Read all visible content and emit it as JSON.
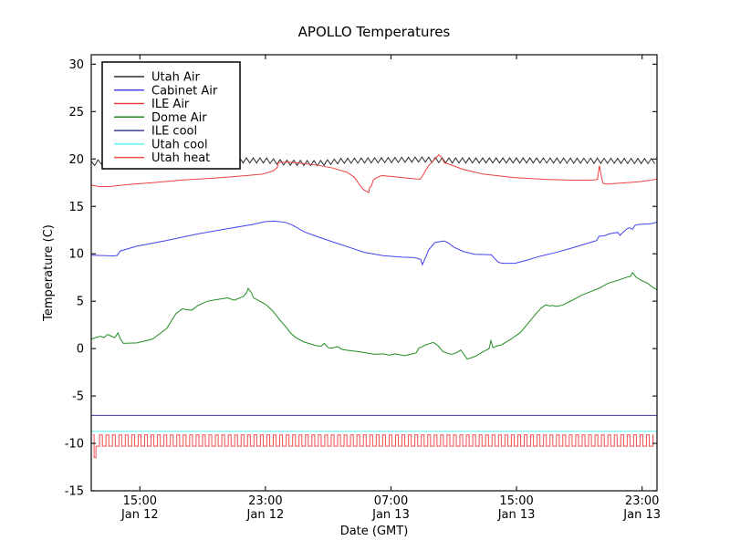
{
  "title": "APOLLO Temperatures",
  "chart_data": {
    "type": "line",
    "title": "APOLLO Temperatures",
    "xlabel": "Date (GMT)",
    "ylabel": "Temperature (C)",
    "x_unit": "hours since Jan 12 00:00 GMT",
    "xlim": [
      11.9,
      47.95
    ],
    "ylim": [
      -15,
      31
    ],
    "grid": false,
    "legend_position": "upper left",
    "yticks": [
      {
        "value": 30,
        "label": "30"
      },
      {
        "value": 25,
        "label": "25"
      },
      {
        "value": 20,
        "label": "20"
      },
      {
        "value": 15,
        "label": "15"
      },
      {
        "value": 10,
        "label": "10"
      },
      {
        "value": 5,
        "label": "5"
      },
      {
        "value": 0,
        "label": "0"
      },
      {
        "value": -5,
        "label": "-5"
      },
      {
        "value": -10,
        "label": "-10"
      },
      {
        "value": -15,
        "label": "-15"
      }
    ],
    "xticks": [
      {
        "value": 15,
        "time": "15:00",
        "date": "Jan 12"
      },
      {
        "value": 23,
        "time": "23:00",
        "date": "Jan 12"
      },
      {
        "value": 31,
        "time": "07:00",
        "date": "Jan 13"
      },
      {
        "value": 39,
        "time": "15:00",
        "date": "Jan 13"
      },
      {
        "value": 47,
        "time": "23:00",
        "date": "Jan 13"
      }
    ],
    "legend": [
      {
        "label": "Utah Air",
        "color": "#2e2e2e"
      },
      {
        "label": "Cabinet Air",
        "color": "#4444ee"
      },
      {
        "label": "ILE Air",
        "color": "#ee4040"
      },
      {
        "label": "Dome Air",
        "color": "#1f8c1f"
      },
      {
        "label": "ILE cool",
        "color": "#3c3c8c"
      },
      {
        "label": "Utah cool",
        "color": "#5ff0f0"
      },
      {
        "label": "Utah heat",
        "color": "#f05050"
      }
    ],
    "series": [
      {
        "name": "Utah Air",
        "color": "#2e2e2e",
        "type": "zigzag",
        "period": 0.43,
        "amplitude": 0.27,
        "t_start": 11.9,
        "t_end": 47.95,
        "centerline": [
          [
            11.9,
            19.5
          ],
          [
            12.6,
            19.75
          ],
          [
            13.5,
            19.85
          ],
          [
            23.0,
            19.85
          ],
          [
            24.2,
            19.62
          ],
          [
            26.4,
            19.55
          ],
          [
            27.8,
            19.8
          ],
          [
            33.0,
            19.95
          ],
          [
            34.5,
            19.85
          ],
          [
            40.0,
            19.85
          ],
          [
            47.95,
            19.78
          ]
        ]
      },
      {
        "name": "Cabinet Air",
        "color": "#4444ee",
        "type": "line",
        "points": [
          [
            11.9,
            9.85
          ],
          [
            12.8,
            9.8
          ],
          [
            13.3,
            9.78
          ],
          [
            13.55,
            9.82
          ],
          [
            13.75,
            10.3
          ],
          [
            14.8,
            10.8
          ],
          [
            16.7,
            11.4
          ],
          [
            18.7,
            12.1
          ],
          [
            20.6,
            12.65
          ],
          [
            22.2,
            13.1
          ],
          [
            23.0,
            13.4
          ],
          [
            23.6,
            13.45
          ],
          [
            24.3,
            13.3
          ],
          [
            24.7,
            13.05
          ],
          [
            25.5,
            12.3
          ],
          [
            26.4,
            11.75
          ],
          [
            27.4,
            11.2
          ],
          [
            28.4,
            10.65
          ],
          [
            29.3,
            10.15
          ],
          [
            30.5,
            9.8
          ],
          [
            31.7,
            9.65
          ],
          [
            32.5,
            9.6
          ],
          [
            32.9,
            9.4
          ],
          [
            33.0,
            8.85
          ],
          [
            33.2,
            9.6
          ],
          [
            33.4,
            10.4
          ],
          [
            33.8,
            11.2
          ],
          [
            34.4,
            11.35
          ],
          [
            34.7,
            11.1
          ],
          [
            35.0,
            10.7
          ],
          [
            35.6,
            10.25
          ],
          [
            36.3,
            9.95
          ],
          [
            37.4,
            9.9
          ],
          [
            37.6,
            9.5
          ],
          [
            37.85,
            9.1
          ],
          [
            38.1,
            9.0
          ],
          [
            38.9,
            9.0
          ],
          [
            39.7,
            9.35
          ],
          [
            40.4,
            9.7
          ],
          [
            41.4,
            10.1
          ],
          [
            42.3,
            10.5
          ],
          [
            43.1,
            10.9
          ],
          [
            43.9,
            11.3
          ],
          [
            44.1,
            11.4
          ],
          [
            44.25,
            11.85
          ],
          [
            44.6,
            11.9
          ],
          [
            44.9,
            12.1
          ],
          [
            45.2,
            12.2
          ],
          [
            45.45,
            12.25
          ],
          [
            45.6,
            11.95
          ],
          [
            45.8,
            12.3
          ],
          [
            46.05,
            12.65
          ],
          [
            46.2,
            12.75
          ],
          [
            46.4,
            12.6
          ],
          [
            46.55,
            13.0
          ],
          [
            46.8,
            13.1
          ],
          [
            47.4,
            13.15
          ],
          [
            47.65,
            13.2
          ],
          [
            47.95,
            13.35
          ]
        ]
      },
      {
        "name": "ILE Air",
        "color": "#ee4040",
        "type": "line",
        "points": [
          [
            11.9,
            17.25
          ],
          [
            12.4,
            17.1
          ],
          [
            13.1,
            17.1
          ],
          [
            14.2,
            17.3
          ],
          [
            15.8,
            17.5
          ],
          [
            17.7,
            17.78
          ],
          [
            19.6,
            17.97
          ],
          [
            21.6,
            18.22
          ],
          [
            22.8,
            18.4
          ],
          [
            23.5,
            18.75
          ],
          [
            23.75,
            19.1
          ],
          [
            23.82,
            19.63
          ],
          [
            24.4,
            19.68
          ],
          [
            25.0,
            19.6
          ],
          [
            26.3,
            19.35
          ],
          [
            27.3,
            19.05
          ],
          [
            28.2,
            18.6
          ],
          [
            28.65,
            18.1
          ],
          [
            29.0,
            17.3
          ],
          [
            29.25,
            16.75
          ],
          [
            29.45,
            16.6
          ],
          [
            29.58,
            16.45
          ],
          [
            29.64,
            17.0
          ],
          [
            29.75,
            17.15
          ],
          [
            29.87,
            17.8
          ],
          [
            30.1,
            18.05
          ],
          [
            30.4,
            18.25
          ],
          [
            31.1,
            18.15
          ],
          [
            32.1,
            17.97
          ],
          [
            32.85,
            17.87
          ],
          [
            33.0,
            18.2
          ],
          [
            33.4,
            19.3
          ],
          [
            33.8,
            20.0
          ],
          [
            34.05,
            20.45
          ],
          [
            34.25,
            20.1
          ],
          [
            34.4,
            19.6
          ],
          [
            34.7,
            19.45
          ],
          [
            35.6,
            18.9
          ],
          [
            36.9,
            18.4
          ],
          [
            38.8,
            18.05
          ],
          [
            40.8,
            17.85
          ],
          [
            42.7,
            17.75
          ],
          [
            43.9,
            17.78
          ],
          [
            44.16,
            17.85
          ],
          [
            44.28,
            19.3
          ],
          [
            44.4,
            18.2
          ],
          [
            44.5,
            17.45
          ],
          [
            44.75,
            17.35
          ],
          [
            45.6,
            17.45
          ],
          [
            46.8,
            17.6
          ],
          [
            47.5,
            17.75
          ],
          [
            47.95,
            17.9
          ]
        ]
      },
      {
        "name": "Dome Air",
        "color": "#1f8c1f",
        "type": "line",
        "points": [
          [
            11.9,
            1.0
          ],
          [
            12.25,
            1.2
          ],
          [
            12.5,
            1.3
          ],
          [
            12.7,
            1.15
          ],
          [
            12.95,
            1.5
          ],
          [
            13.2,
            1.3
          ],
          [
            13.4,
            1.15
          ],
          [
            13.6,
            1.65
          ],
          [
            13.76,
            1.0
          ],
          [
            13.95,
            0.55
          ],
          [
            14.8,
            0.6
          ],
          [
            15.8,
            1.0
          ],
          [
            16.7,
            2.1
          ],
          [
            17.3,
            3.7
          ],
          [
            17.7,
            4.2
          ],
          [
            18.0,
            4.1
          ],
          [
            18.3,
            4.05
          ],
          [
            18.7,
            4.55
          ],
          [
            19.3,
            5.0
          ],
          [
            20.0,
            5.2
          ],
          [
            20.6,
            5.35
          ],
          [
            21.0,
            5.1
          ],
          [
            21.3,
            5.3
          ],
          [
            21.6,
            5.5
          ],
          [
            21.8,
            5.9
          ],
          [
            21.9,
            6.35
          ],
          [
            22.1,
            5.9
          ],
          [
            22.25,
            5.35
          ],
          [
            22.8,
            4.85
          ],
          [
            23.1,
            4.55
          ],
          [
            23.5,
            3.9
          ],
          [
            23.95,
            2.95
          ],
          [
            24.3,
            2.3
          ],
          [
            24.6,
            1.65
          ],
          [
            24.9,
            1.2
          ],
          [
            25.45,
            0.7
          ],
          [
            26.25,
            0.3
          ],
          [
            26.55,
            0.25
          ],
          [
            26.75,
            0.55
          ],
          [
            27.0,
            0.1
          ],
          [
            27.2,
            0.05
          ],
          [
            27.6,
            0.2
          ],
          [
            27.9,
            -0.1
          ],
          [
            28.35,
            -0.2
          ],
          [
            29.05,
            -0.35
          ],
          [
            29.95,
            -0.6
          ],
          [
            30.5,
            -0.55
          ],
          [
            30.9,
            -0.7
          ],
          [
            31.25,
            -0.55
          ],
          [
            31.85,
            -0.75
          ],
          [
            32.25,
            -0.6
          ],
          [
            32.6,
            -0.45
          ],
          [
            32.8,
            0.1
          ],
          [
            32.95,
            0.15
          ],
          [
            33.15,
            0.35
          ],
          [
            33.4,
            0.5
          ],
          [
            33.7,
            0.65
          ],
          [
            34.0,
            0.3
          ],
          [
            34.3,
            -0.3
          ],
          [
            34.6,
            -0.5
          ],
          [
            34.85,
            -0.6
          ],
          [
            35.15,
            -0.45
          ],
          [
            35.45,
            -0.15
          ],
          [
            35.65,
            -0.6
          ],
          [
            35.85,
            -1.1
          ],
          [
            36.15,
            -0.95
          ],
          [
            36.45,
            -0.75
          ],
          [
            36.9,
            -0.3
          ],
          [
            37.25,
            0.0
          ],
          [
            37.37,
            0.85
          ],
          [
            37.5,
            0.1
          ],
          [
            37.8,
            0.3
          ],
          [
            38.05,
            0.4
          ],
          [
            38.65,
            1.0
          ],
          [
            39.25,
            1.7
          ],
          [
            39.8,
            2.8
          ],
          [
            40.2,
            3.6
          ],
          [
            40.55,
            4.25
          ],
          [
            40.85,
            4.6
          ],
          [
            41.15,
            4.5
          ],
          [
            41.3,
            4.55
          ],
          [
            41.55,
            4.45
          ],
          [
            41.8,
            4.55
          ],
          [
            41.95,
            4.6
          ],
          [
            42.55,
            5.1
          ],
          [
            43.1,
            5.6
          ],
          [
            43.7,
            6.0
          ],
          [
            44.3,
            6.4
          ],
          [
            44.85,
            6.9
          ],
          [
            45.45,
            7.2
          ],
          [
            46.05,
            7.55
          ],
          [
            46.25,
            7.6
          ],
          [
            46.38,
            8.0
          ],
          [
            46.5,
            7.8
          ],
          [
            46.6,
            7.55
          ],
          [
            46.95,
            7.2
          ],
          [
            47.35,
            6.9
          ],
          [
            47.65,
            6.5
          ],
          [
            47.95,
            6.2
          ]
        ]
      },
      {
        "name": "ILE cool",
        "color": "#3c3c8c",
        "type": "line",
        "points": [
          [
            11.9,
            -7.05
          ],
          [
            47.95,
            -7.05
          ]
        ]
      },
      {
        "name": "Utah cool",
        "color": "#5ff0f0",
        "type": "line",
        "points": [
          [
            11.9,
            -8.72
          ],
          [
            47.95,
            -8.72
          ]
        ]
      },
      {
        "name": "Utah heat",
        "color": "#f05050",
        "type": "square",
        "intro": [
          [
            12.0,
            -9.1
          ],
          [
            12.08,
            -9.1
          ],
          [
            12.08,
            -11.5
          ],
          [
            12.2,
            -11.5
          ]
        ],
        "t0": 12.2,
        "t1": 47.7,
        "period": 0.41,
        "duty": 0.44,
        "top": -9.1,
        "bottom": -10.3
      }
    ]
  }
}
